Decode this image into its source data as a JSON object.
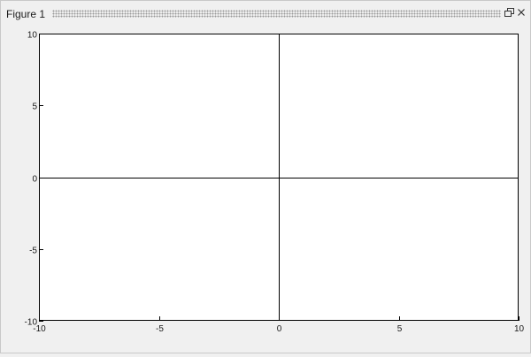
{
  "window": {
    "title": "Figure 1",
    "undock_icon": "undock-icon",
    "close_icon": "close-icon"
  },
  "chart_data": {
    "type": "line",
    "series": [],
    "xlim": [
      -10,
      10
    ],
    "ylim": [
      -10,
      10
    ],
    "x_ticks": [
      "-10",
      "-5",
      "0",
      "5",
      "10"
    ],
    "y_ticks": [
      "10",
      "5",
      "0",
      "-5",
      "-10"
    ],
    "x_tick_values": [
      -10,
      -5,
      0,
      5,
      10
    ],
    "y_tick_values": [
      10,
      5,
      0,
      -5,
      -10
    ],
    "crosshair_lines": {
      "x": 0,
      "y": 0
    },
    "grid": false,
    "colors": {
      "axes_background": "#ffffff",
      "axes_line": "#000000",
      "figure_background": "#f0f0f0"
    }
  }
}
